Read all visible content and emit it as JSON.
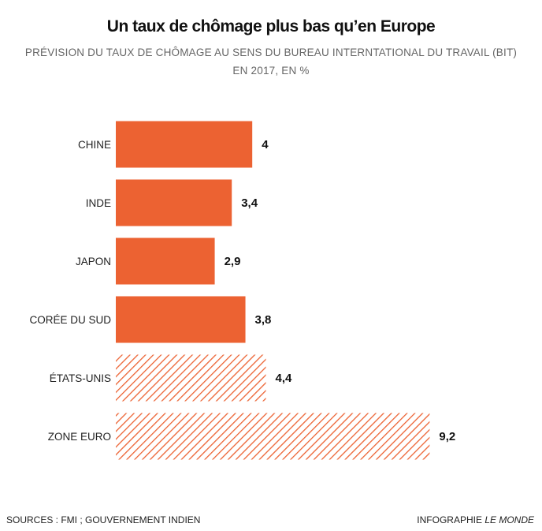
{
  "header": {
    "title": "Un taux de chômage plus bas qu’en Europe",
    "subtitle_line1": "PRÉVISION DU TAUX DE CHÔMAGE AU SENS DU BUREAU INTERNTATIONAL DU TRAVAIL (BIT)",
    "subtitle_line2": "EN 2017, EN %"
  },
  "colors": {
    "bar": "#ec6232",
    "hatch": "#ec6232",
    "label": "#222222",
    "value": "#111111"
  },
  "chart_data": {
    "type": "bar",
    "orientation": "horizontal",
    "title": "Un taux de chômage plus bas qu’en Europe",
    "xlabel": "",
    "ylabel": "",
    "xlim": [
      0,
      10
    ],
    "grid": false,
    "categories": [
      "CHINE",
      "INDE",
      "JAPON",
      "CORÉE DU SUD",
      "ÉTATS-UNIS",
      "ZONE EURO"
    ],
    "values": [
      4,
      3.4,
      2.9,
      3.8,
      4.4,
      9.2
    ],
    "value_labels": [
      "4",
      "3,4",
      "2,9",
      "3,8",
      "4,4",
      "9,2"
    ],
    "styles": [
      "solid",
      "solid",
      "solid",
      "solid",
      "hatched",
      "hatched"
    ]
  },
  "footer": {
    "source": "SOURCES : FMI ; GOUVERNEMENT INDIEN",
    "credit_prefix": "INFOGRAPHIE",
    "credit_brand": "LE MONDE"
  }
}
